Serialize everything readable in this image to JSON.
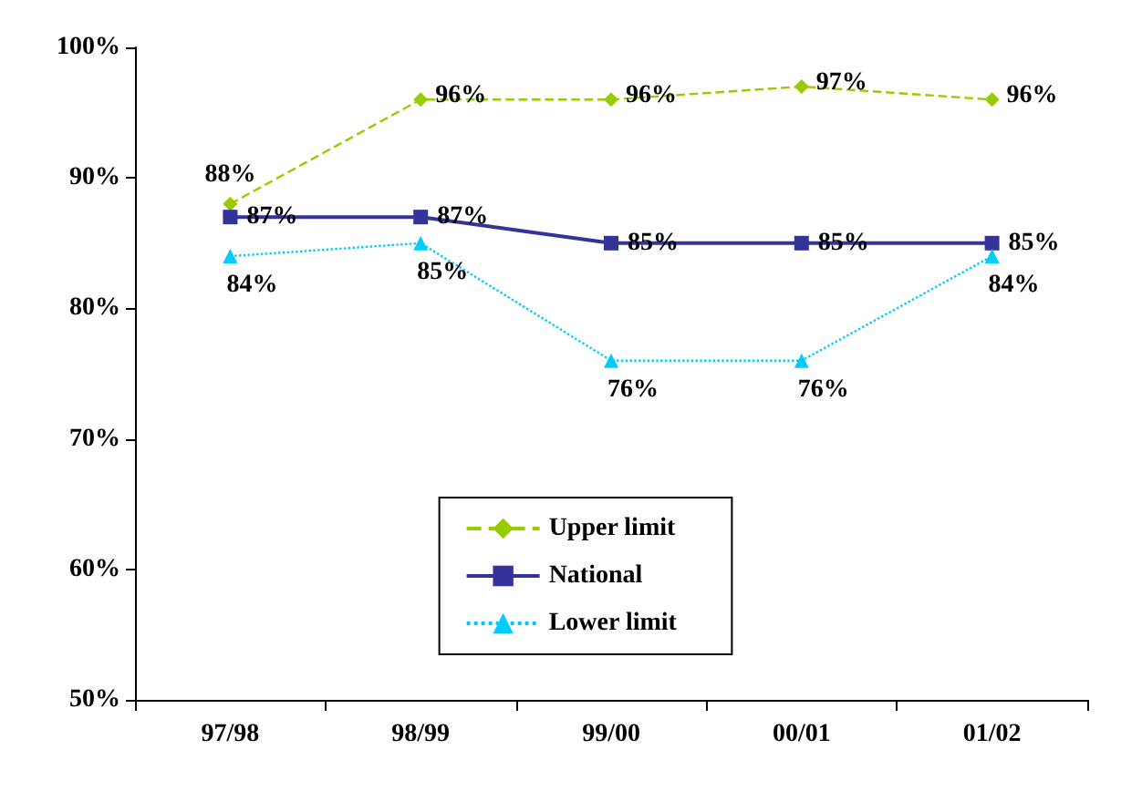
{
  "chart_data": {
    "type": "line",
    "categories": [
      "97/98",
      "98/99",
      "99/00",
      "00/01",
      "01/02"
    ],
    "series": [
      {
        "name": "Upper limit",
        "color": "#99cc00",
        "values": [
          88,
          96,
          96,
          97,
          96
        ],
        "value_labels": [
          "88%",
          "96%",
          "96%",
          "97%",
          "96%"
        ],
        "marker": "diamond",
        "line_style": "dashed"
      },
      {
        "name": "National",
        "color": "#333399",
        "values": [
          87,
          87,
          85,
          85,
          85
        ],
        "value_labels": [
          "87%",
          "87%",
          "85%",
          "85%",
          "85%"
        ],
        "marker": "square",
        "line_style": "solid"
      },
      {
        "name": "Lower limit",
        "color": "#00ccff",
        "values": [
          84,
          85,
          76,
          76,
          84
        ],
        "value_labels": [
          "84%",
          "85%",
          "76%",
          "76%",
          "84%"
        ],
        "marker": "triangle",
        "line_style": "dotted"
      }
    ],
    "ylim": [
      50,
      100
    ],
    "yticks": [
      {
        "value": 50,
        "label": "50%"
      },
      {
        "value": 60,
        "label": "60%"
      },
      {
        "value": 70,
        "label": "70%"
      },
      {
        "value": 80,
        "label": "80%"
      },
      {
        "value": 90,
        "label": "90%"
      },
      {
        "value": 100,
        "label": "100%"
      }
    ],
    "grid": false,
    "legend": "bottom"
  }
}
